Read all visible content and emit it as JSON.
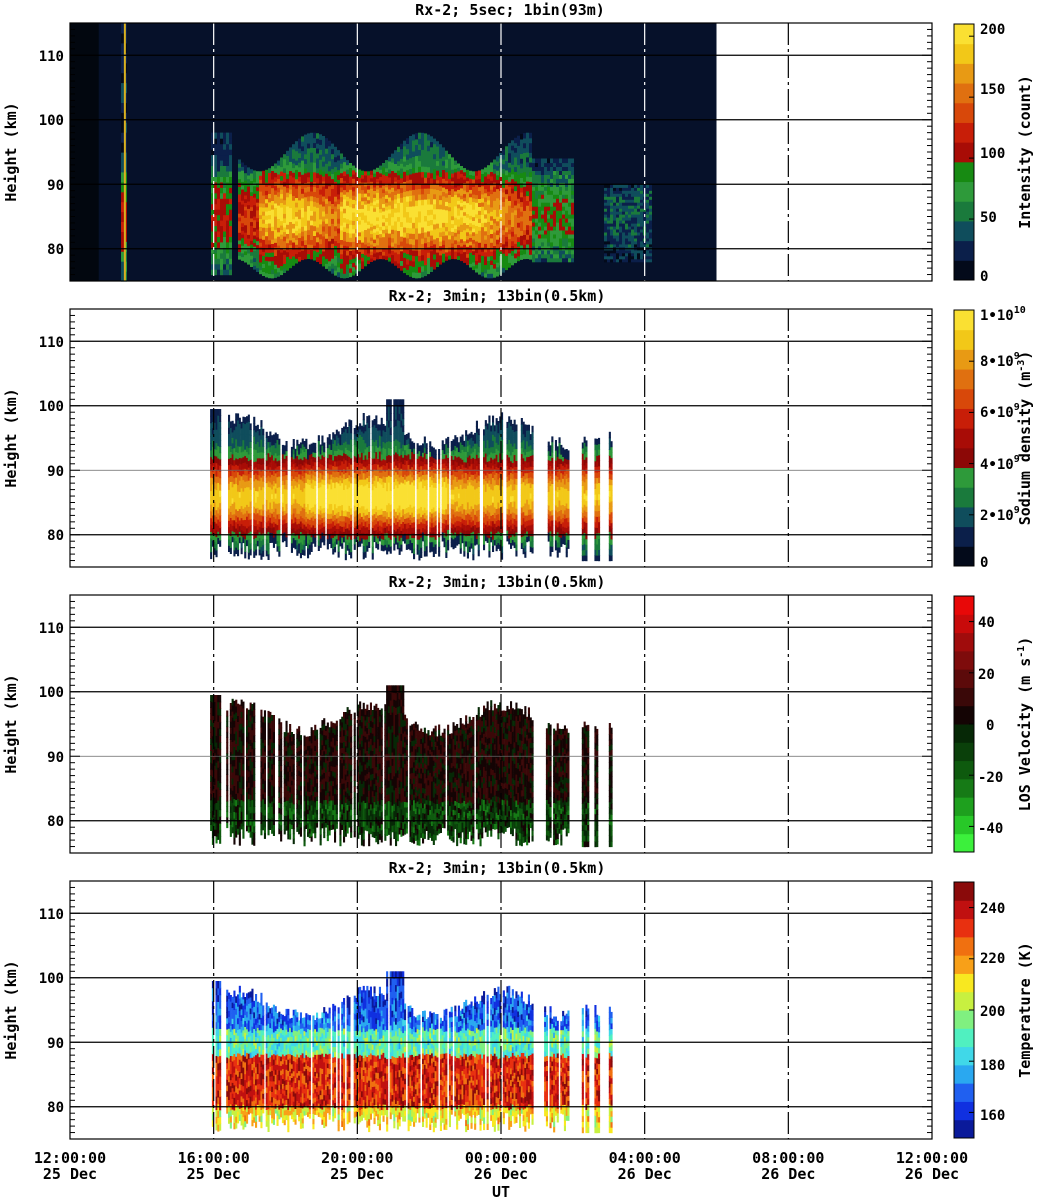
{
  "chart_data": [
    {
      "type": "heatmap",
      "title": "Rx-2;  5sec; 1bin(93m)",
      "ylabel": "Height (km)",
      "ylim": [
        75,
        115
      ],
      "yticks": [
        "110",
        "100",
        "90",
        "80"
      ],
      "colorbar": {
        "label": "Intensity (count)",
        "range": [
          0,
          210
        ],
        "ticks": [
          "0",
          "50",
          "100",
          "150",
          "200"
        ],
        "colors": [
          "#030a1a",
          "#0b1f4a",
          "#0f4d5c",
          "#1a7a3c",
          "#2e9a3a",
          "#178a12",
          "#a80c06",
          "#c81e08",
          "#d8480a",
          "#e07010",
          "#e89a14",
          "#f2c818",
          "#fae032"
        ]
      },
      "data_extent": [
        "12:00:00 25 Dec",
        "06:00:00 26 Dec"
      ],
      "layer_peak_km": 84
    },
    {
      "type": "heatmap",
      "title": "Rx-2; 3min; 13bin(0.5km)",
      "ylabel": "Height (km)",
      "ylim": [
        75,
        115
      ],
      "yticks": [
        "110",
        "100",
        "90",
        "80"
      ],
      "colorbar": {
        "label_main": "Sodium density (m",
        "label_sup": "-3",
        "label_end": ")",
        "range": [
          0,
          10000000000
        ],
        "ticks": [
          {
            "base": "0",
            "exp": ""
          },
          {
            "base": "2•10",
            "exp": "9"
          },
          {
            "base": "4•10",
            "exp": "9"
          },
          {
            "base": "6•10",
            "exp": "9"
          },
          {
            "base": "8•10",
            "exp": "9"
          },
          {
            "base": "1•10",
            "exp": "10"
          }
        ],
        "colors": [
          "#030a1a",
          "#0b1f4a",
          "#0f4d5c",
          "#1a7a3c",
          "#2e9a3a",
          "#8c0806",
          "#a80c06",
          "#c81e08",
          "#d8480a",
          "#e07010",
          "#e89a14",
          "#f2c818",
          "#fae032"
        ]
      },
      "data_extent": [
        "15:55:00 25 Dec",
        "02:05:00 26 Dec"
      ]
    },
    {
      "type": "heatmap",
      "title": "Rx-2; 3min; 13bin(0.5km)",
      "ylabel": "Height (km)",
      "ylim": [
        75,
        115
      ],
      "yticks": [
        "110",
        "100",
        "90",
        "80"
      ],
      "colorbar": {
        "label_main": "LOS Velocity (m s",
        "label_sup": "-1",
        "label_end": ")",
        "range": [
          -50,
          50
        ],
        "ticks": [
          "-40",
          "-20",
          "0",
          "20",
          "40"
        ],
        "colors": [
          "#3cf03c",
          "#28c828",
          "#1ea01e",
          "#167a16",
          "#0e5a0e",
          "#0a400a",
          "#062806",
          "#140404",
          "#3a0808",
          "#5c0a0a",
          "#7e0c0c",
          "#a00c0c",
          "#c80a0a",
          "#e80808"
        ]
      },
      "data_extent": [
        "15:55:00 25 Dec",
        "02:05:00 26 Dec"
      ]
    },
    {
      "type": "heatmap",
      "title": "Rx-2; 3min; 13bin(0.5km)",
      "ylabel": "Height (km)",
      "ylim": [
        75,
        115
      ],
      "yticks": [
        "110",
        "100",
        "90",
        "80"
      ],
      "xlabel": "UT",
      "xticks": [
        {
          "time": "12:00:00",
          "date": "25 Dec"
        },
        {
          "time": "16:00:00",
          "date": "25 Dec"
        },
        {
          "time": "20:00:00",
          "date": "25 Dec"
        },
        {
          "time": "00:00:00",
          "date": "26 Dec"
        },
        {
          "time": "04:00:00",
          "date": "26 Dec"
        },
        {
          "time": "08:00:00",
          "date": "26 Dec"
        },
        {
          "time": "12:00:00",
          "date": "26 Dec"
        }
      ],
      "colorbar": {
        "label": "Temperature (K)",
        "range": [
          150,
          250
        ],
        "ticks": [
          "160",
          "180",
          "200",
          "220",
          "240"
        ],
        "colors": [
          "#0a1a9a",
          "#1030e0",
          "#2060f0",
          "#2aa8f0",
          "#40d8e8",
          "#50f0c0",
          "#80f080",
          "#c8f040",
          "#f8e820",
          "#f8a018",
          "#f07010",
          "#e83010",
          "#c01010",
          "#8a0a0a"
        ]
      },
      "data_extent": [
        "15:55:00 25 Dec",
        "02:05:00 26 Dec"
      ]
    }
  ]
}
